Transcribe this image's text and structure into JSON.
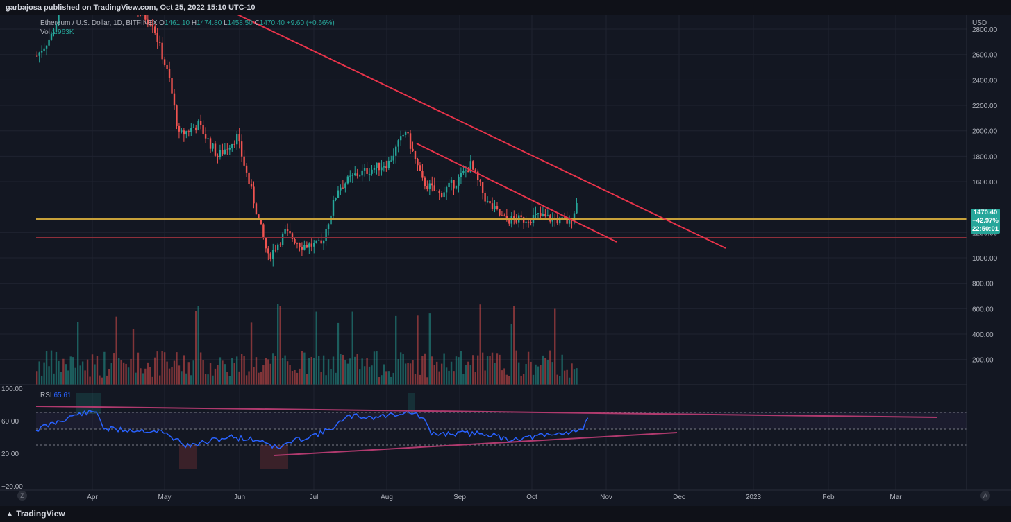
{
  "header": {
    "text": "garbajosa published on TradingView.com, Oct 25, 2022 15:10 UTC-10"
  },
  "legend": {
    "symbol": "Ethereum / U.S. Dollar, 1D, BITFINEX",
    "open_label": "O",
    "open": "1461.10",
    "high_label": "H",
    "high": "1474.80",
    "low_label": "L",
    "low": "1458.50",
    "close_label": "C",
    "close": "1470.40",
    "change": "+9.60 (+0.66%)",
    "vol_label": "Vol",
    "vol": "1.963K"
  },
  "price_axis": {
    "currency": "USD",
    "ticks": [
      "2800.00",
      "2600.00",
      "2400.00",
      "2200.00",
      "2000.00",
      "1800.00",
      "1600.00",
      "1200.00",
      "1000.00",
      "800.00",
      "600.00",
      "400.00",
      "200.00"
    ]
  },
  "price_badge": {
    "price": "1470.40",
    "change": "−42.97%",
    "countdown": "22:50:01"
  },
  "rsi": {
    "label": "RSI",
    "value": "65.61",
    "ticks": [
      "100.00",
      "60.00",
      "20.00",
      "−20.00"
    ]
  },
  "time_axis": {
    "labels": [
      "Apr",
      "May",
      "Jun",
      "Jul",
      "Aug",
      "Sep",
      "Oct",
      "Nov",
      "Dec",
      "2023",
      "Feb",
      "Mar"
    ]
  },
  "footer": {
    "brand": "TradingView"
  },
  "colors": {
    "bg": "#131722",
    "up": "#26a69a",
    "down": "#ef5350",
    "trend": "#e8334a",
    "support": "#c8a13a",
    "rsi_line": "#2962ff"
  },
  "chart_data": {
    "type": "candlestick",
    "ylim": [
      100,
      3000
    ],
    "series": [
      {
        "name": "price_path_approx",
        "points_date_close": [
          [
            "2022-03-14",
            2590
          ],
          [
            "2022-03-20",
            2750
          ],
          [
            "2022-03-27",
            3100
          ],
          [
            "2022-04-03",
            3450
          ],
          [
            "2022-04-10",
            3200
          ],
          [
            "2022-04-17",
            3050
          ],
          [
            "2022-04-24",
            2950
          ],
          [
            "2022-05-01",
            2850
          ],
          [
            "2022-05-08",
            2400
          ],
          [
            "2022-05-12",
            1960
          ],
          [
            "2022-05-20",
            2050
          ],
          [
            "2022-05-28",
            1800
          ],
          [
            "2022-06-05",
            1950
          ],
          [
            "2022-06-12",
            1450
          ],
          [
            "2022-06-18",
            1000
          ],
          [
            "2022-06-25",
            1200
          ],
          [
            "2022-07-02",
            1100
          ],
          [
            "2022-07-10",
            1100
          ],
          [
            "2022-07-17",
            1550
          ],
          [
            "2022-07-24",
            1650
          ],
          [
            "2022-07-31",
            1700
          ],
          [
            "2022-08-07",
            1750
          ],
          [
            "2022-08-14",
            2000
          ],
          [
            "2022-08-21",
            1600
          ],
          [
            "2022-08-28",
            1500
          ],
          [
            "2022-09-04",
            1600
          ],
          [
            "2022-09-10",
            1730
          ],
          [
            "2022-09-17",
            1430
          ],
          [
            "2022-09-24",
            1300
          ],
          [
            "2022-10-01",
            1300
          ],
          [
            "2022-10-08",
            1330
          ],
          [
            "2022-10-15",
            1300
          ],
          [
            "2022-10-21",
            1280
          ],
          [
            "2022-10-25",
            1470
          ]
        ]
      }
    ],
    "horizontal_levels": [
      1470,
      1320
    ],
    "trendlines": [
      {
        "from": [
          "2022-06-01",
          3150
        ],
        "to": [
          "2022-12-20",
          1180
        ]
      },
      {
        "from": [
          "2022-08-14",
          2030
        ],
        "to": [
          "2022-11-01",
          1270
        ]
      }
    ]
  }
}
